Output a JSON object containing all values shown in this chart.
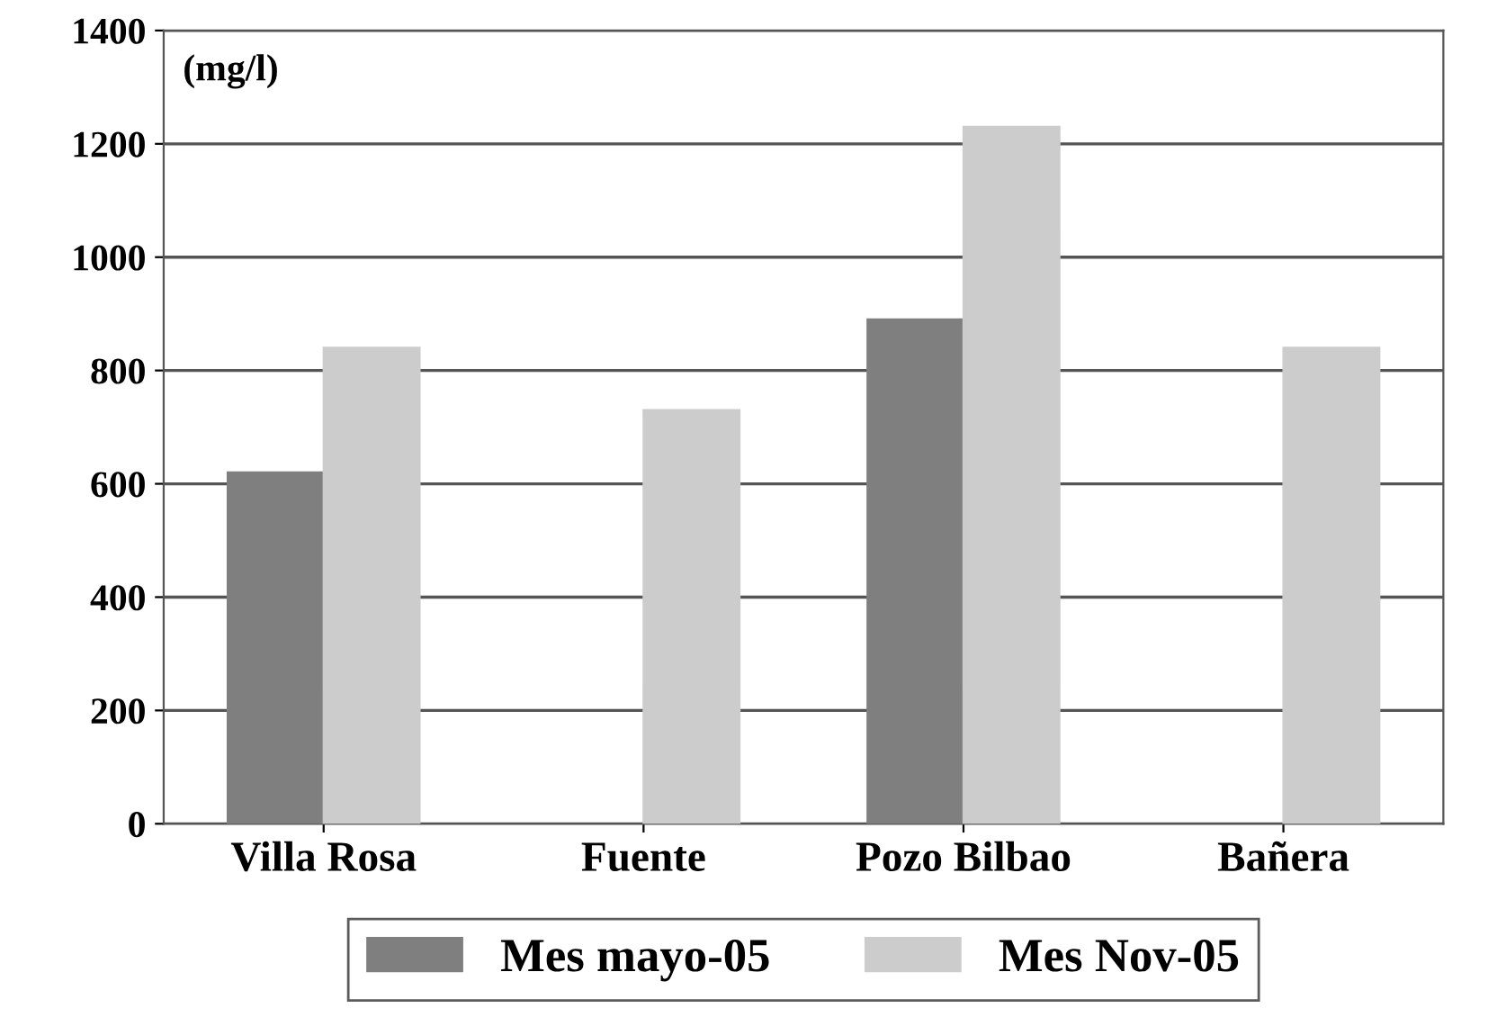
{
  "chart_data": {
    "type": "bar",
    "ylabel": "(mg/l)",
    "categories": [
      "Villa Rosa",
      "Fuente",
      "Pozo Bilbao",
      "Bañera"
    ],
    "series": [
      {
        "name": "Mes mayo-05",
        "color": "#7f7f7f",
        "values": [
          620,
          null,
          890,
          null
        ]
      },
      {
        "name": "Mes Nov-05",
        "color": "#cccccc",
        "values": [
          840,
          730,
          1230,
          840
        ]
      }
    ],
    "ylim": [
      0,
      1400
    ],
    "yticks": [
      0,
      200,
      400,
      600,
      800,
      1000,
      1200,
      1400
    ],
    "grid": "y",
    "legend": "bottom"
  }
}
